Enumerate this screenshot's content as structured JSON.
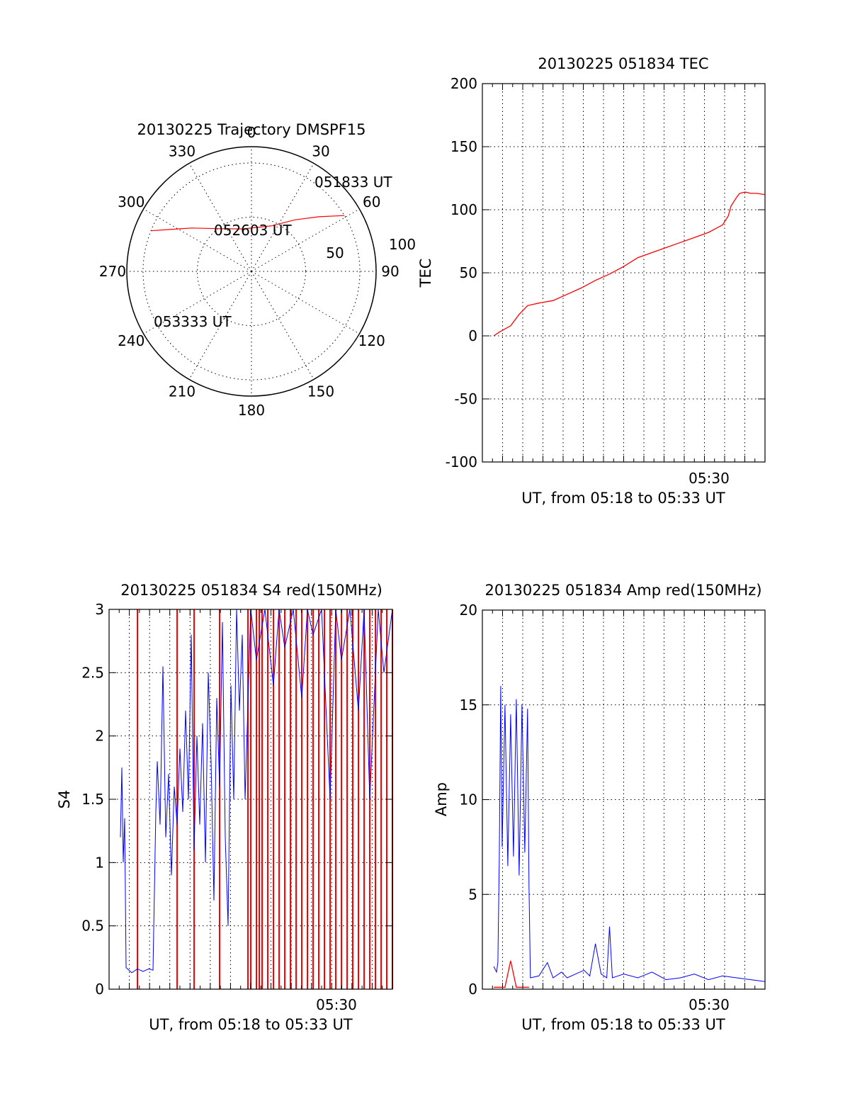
{
  "chart_data": [
    {
      "type": "polar",
      "title": "20130225 Trajectory DMSPF15",
      "azimuth_ticks": [
        "0",
        "30",
        "60",
        "90",
        "120",
        "150",
        "180",
        "210",
        "240",
        "270",
        "300",
        "330"
      ],
      "radial_ticks": [
        "50",
        "100"
      ],
      "trajectory_color": "#ff0000",
      "trajectory": [
        {
          "az": 59,
          "r": 100
        },
        {
          "az": 51,
          "r": 80
        },
        {
          "az": 40,
          "r": 62
        },
        {
          "az": 24,
          "r": 46
        },
        {
          "az": -12,
          "r": 40
        },
        {
          "az": -38,
          "r": 50
        },
        {
          "az": -54,
          "r": 68
        },
        {
          "az": -63,
          "r": 85
        },
        {
          "az": -68,
          "r": 100
        }
      ],
      "annotations": [
        {
          "text": "051833 UT",
          "az": 59,
          "r": 100
        },
        {
          "text": "052603 UT",
          "az": -12,
          "r": 40
        },
        {
          "text": "053333 UT",
          "az": -68,
          "r": 100
        }
      ]
    },
    {
      "type": "line",
      "title": "20130225 051834 TEC",
      "ylabel": "TEC",
      "xlabel": "UT, from 05:18 to 05:33 UT",
      "xtick_label": "05:30",
      "ylim": [
        -100,
        200
      ],
      "yticks": [
        -100,
        -50,
        0,
        50,
        100,
        150,
        200
      ],
      "grid": true,
      "series": [
        {
          "color": "#ff0000",
          "x": [
            0.04,
            0.06,
            0.1,
            0.13,
            0.16,
            0.2,
            0.25,
            0.3,
            0.35,
            0.4,
            0.45,
            0.5,
            0.55,
            0.6,
            0.65,
            0.7,
            0.75,
            0.8,
            0.85,
            0.87,
            0.88,
            0.9,
            0.91,
            0.93,
            0.95,
            0.97,
            1.0
          ],
          "y": [
            0,
            3,
            8,
            17,
            24,
            26,
            28,
            33,
            38,
            44,
            49,
            55,
            62,
            66,
            70,
            74,
            78,
            82,
            88,
            95,
            103,
            110,
            113,
            114,
            113,
            113,
            112
          ]
        }
      ]
    },
    {
      "type": "line",
      "title": "20130225 051834 S4 red(150MHz)",
      "ylabel": "S4",
      "xlabel": "UT, from 05:18 to 05:33 UT",
      "xtick_label": "05:30",
      "ylim": [
        0,
        3
      ],
      "yticks": [
        0,
        0.5,
        1,
        1.5,
        2,
        2.5,
        3
      ],
      "grid": true,
      "series": [
        {
          "color": "#0000ff",
          "x": [
            0.04,
            0.045,
            0.05,
            0.055,
            0.06,
            0.07,
            0.08,
            0.1,
            0.12,
            0.14,
            0.155,
            0.165,
            0.17,
            0.18,
            0.19,
            0.2,
            0.21,
            0.22,
            0.23,
            0.24,
            0.25,
            0.26,
            0.27,
            0.28,
            0.29,
            0.3,
            0.31,
            0.32,
            0.33,
            0.34,
            0.35,
            0.36,
            0.37,
            0.38,
            0.39,
            0.4,
            0.41,
            0.42,
            0.43,
            0.44,
            0.45,
            0.46,
            0.47,
            0.48,
            0.5,
            0.52,
            0.55,
            0.58,
            0.6,
            0.62,
            0.65,
            0.68,
            0.7,
            0.72,
            0.75,
            0.78,
            0.8,
            0.82,
            0.85,
            0.88,
            0.9,
            0.92,
            0.95,
            0.97,
            1.0
          ],
          "y": [
            1.2,
            1.75,
            1.0,
            1.35,
            0.17,
            0.15,
            0.13,
            0.16,
            0.14,
            0.16,
            0.15,
            1.4,
            1.8,
            1.3,
            2.55,
            1.2,
            1.7,
            0.9,
            1.6,
            1.3,
            1.9,
            1.4,
            2.2,
            1.5,
            2.8,
            1.1,
            2.0,
            1.3,
            2.1,
            1.0,
            2.5,
            1.8,
            0.7,
            2.3,
            1.6,
            2.9,
            1.2,
            0.5,
            2.4,
            1.5,
            3.0,
            2.2,
            2.8,
            1.5,
            3.0,
            2.6,
            3.0,
            2.4,
            3.0,
            2.7,
            3.0,
            2.3,
            3.0,
            2.8,
            3.0,
            1.5,
            3.0,
            2.6,
            3.0,
            2.2,
            3.0,
            1.5,
            3.0,
            2.5,
            3.0
          ]
        }
      ],
      "red_spikes_x": [
        0.1,
        0.24,
        0.3,
        0.39,
        0.49,
        0.5,
        0.52,
        0.53,
        0.54,
        0.56,
        0.58,
        0.6,
        0.62,
        0.64,
        0.66,
        0.68,
        0.7,
        0.72,
        0.74,
        0.76,
        0.78,
        0.8,
        0.82,
        0.84,
        0.86,
        0.88,
        0.9,
        0.92,
        0.94,
        0.96,
        0.98,
        1.0
      ]
    },
    {
      "type": "line",
      "title": "20130225 051834 Amp red(150MHz)",
      "ylabel": "Amp",
      "xlabel": "UT, from 05:18 to 05:33 UT",
      "xtick_label": "05:30",
      "ylim": [
        0,
        20
      ],
      "yticks": [
        0,
        5,
        10,
        15,
        20
      ],
      "grid": true,
      "series": [
        {
          "color": "#0000ff",
          "x": [
            0.04,
            0.05,
            0.055,
            0.06,
            0.065,
            0.07,
            0.08,
            0.09,
            0.1,
            0.11,
            0.12,
            0.13,
            0.14,
            0.15,
            0.16,
            0.165,
            0.17,
            0.2,
            0.23,
            0.25,
            0.28,
            0.3,
            0.33,
            0.36,
            0.38,
            0.4,
            0.42,
            0.44,
            0.45,
            0.46,
            0.48,
            0.5,
            0.55,
            0.6,
            0.65,
            0.7,
            0.75,
            0.8,
            0.85,
            0.9,
            0.95,
            1.0
          ],
          "y": [
            1.2,
            0.9,
            1.4,
            7.0,
            16.0,
            7.5,
            15.0,
            6.5,
            14.5,
            7.0,
            15.3,
            6.0,
            15.0,
            7.2,
            14.8,
            5.5,
            0.6,
            0.7,
            1.4,
            0.6,
            0.9,
            0.6,
            0.8,
            1.0,
            0.7,
            2.4,
            0.8,
            0.6,
            3.3,
            0.6,
            0.7,
            0.8,
            0.6,
            0.9,
            0.5,
            0.6,
            0.8,
            0.5,
            0.7,
            0.6,
            0.5,
            0.4
          ]
        },
        {
          "color": "#ff0000",
          "x": [
            0.04,
            0.06,
            0.08,
            0.1,
            0.12,
            0.14,
            0.16,
            0.165
          ],
          "y": [
            0.1,
            0.1,
            0.1,
            1.5,
            0.1,
            0.1,
            0.1,
            0.1
          ]
        }
      ]
    }
  ]
}
